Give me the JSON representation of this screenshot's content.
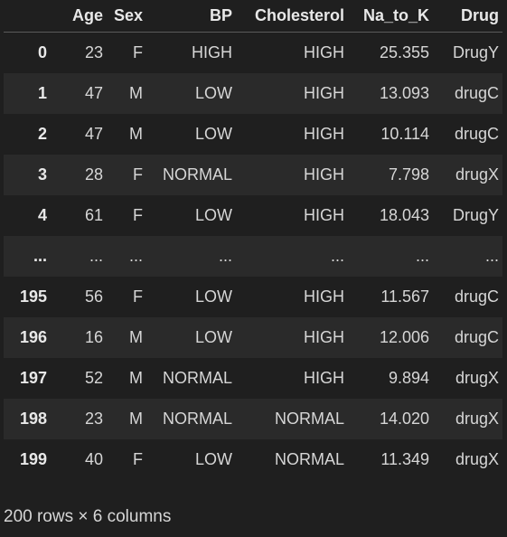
{
  "table": {
    "columns": [
      "",
      "Age",
      "Sex",
      "BP",
      "Cholesterol",
      "Na_to_K",
      "Drug"
    ],
    "rows": [
      {
        "index": "0",
        "age": "23",
        "sex": "F",
        "bp": "HIGH",
        "cholesterol": "HIGH",
        "na_to_k": "25.355",
        "drug": "DrugY"
      },
      {
        "index": "1",
        "age": "47",
        "sex": "M",
        "bp": "LOW",
        "cholesterol": "HIGH",
        "na_to_k": "13.093",
        "drug": "drugC"
      },
      {
        "index": "2",
        "age": "47",
        "sex": "M",
        "bp": "LOW",
        "cholesterol": "HIGH",
        "na_to_k": "10.114",
        "drug": "drugC"
      },
      {
        "index": "3",
        "age": "28",
        "sex": "F",
        "bp": "NORMAL",
        "cholesterol": "HIGH",
        "na_to_k": "7.798",
        "drug": "drugX"
      },
      {
        "index": "4",
        "age": "61",
        "sex": "F",
        "bp": "LOW",
        "cholesterol": "HIGH",
        "na_to_k": "18.043",
        "drug": "DrugY"
      },
      {
        "index": "...",
        "age": "...",
        "sex": "...",
        "bp": "...",
        "cholesterol": "...",
        "na_to_k": "...",
        "drug": "..."
      },
      {
        "index": "195",
        "age": "56",
        "sex": "F",
        "bp": "LOW",
        "cholesterol": "HIGH",
        "na_to_k": "11.567",
        "drug": "drugC"
      },
      {
        "index": "196",
        "age": "16",
        "sex": "M",
        "bp": "LOW",
        "cholesterol": "HIGH",
        "na_to_k": "12.006",
        "drug": "drugC"
      },
      {
        "index": "197",
        "age": "52",
        "sex": "M",
        "bp": "NORMAL",
        "cholesterol": "HIGH",
        "na_to_k": "9.894",
        "drug": "drugX"
      },
      {
        "index": "198",
        "age": "23",
        "sex": "M",
        "bp": "NORMAL",
        "cholesterol": "NORMAL",
        "na_to_k": "14.020",
        "drug": "drugX"
      },
      {
        "index": "199",
        "age": "40",
        "sex": "F",
        "bp": "LOW",
        "cholesterol": "NORMAL",
        "na_to_k": "11.349",
        "drug": "drugX"
      }
    ]
  },
  "summary": "200 rows × 6 columns"
}
